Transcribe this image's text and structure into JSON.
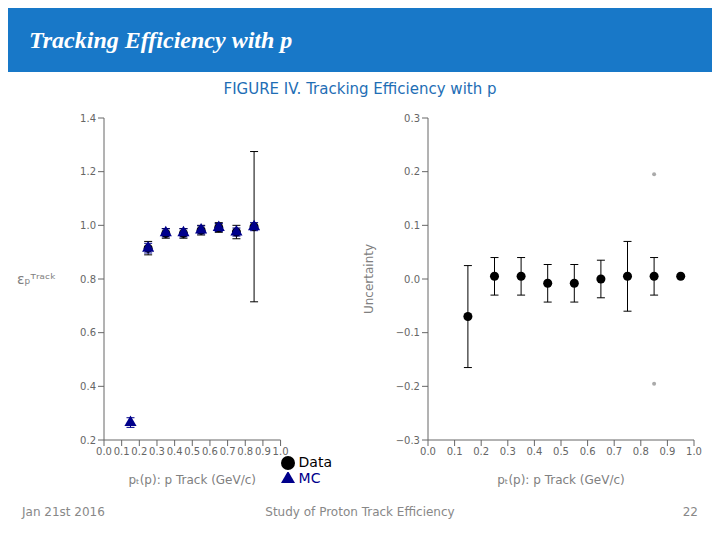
{
  "chart_data": [
    {
      "type": "scatter",
      "title": "Tracking Efficiency with p",
      "subtitle": "FIGURE IV. Tracking Efficiency with p",
      "annotations": [
        "Jan 21st 2016",
        "Study of Proton Track Efficiency",
        "22"
      ],
      "xlabel": "pₜ(p): p Track (GeV/c)",
      "ylabel": "εₚᵀʳᵃᶜᵏ",
      "xlim": [
        0,
        1
      ],
      "ylim": [
        0.2,
        1.4
      ],
      "xticks": [
        {
          "value": 0,
          "label": "0.0"
        },
        0.1,
        0.2,
        0.3,
        0.4,
        0.5,
        0.6,
        0.7,
        0.8,
        0.9,
        {
          "value": 1,
          "label": "1.0"
        }
      ],
      "yticks": [
        0.2,
        0.4,
        0.6,
        0.8,
        {
          "value": 1,
          "label": "1.0"
        },
        1.2,
        1.4
      ],
      "grid": false,
      "legend": "lower right",
      "series": [
        {
          "name": "Data",
          "color": "#000000",
          "marker": "circle",
          "x": [
            0.25,
            0.35,
            0.45,
            0.55,
            0.65,
            0.75,
            0.85
          ],
          "values": [
            0.915,
            0.97,
            0.97,
            0.982,
            0.992,
            0.975,
            0.995
          ],
          "yerr": [
            0.025,
            0.018,
            0.018,
            0.018,
            0.018,
            0.025,
            0.28
          ]
        },
        {
          "name": "MC",
          "color": "#00008B",
          "marker": "triangle",
          "x": [
            0.15,
            0.25,
            0.35,
            0.45,
            0.55,
            0.65,
            0.75,
            0.85
          ],
          "values": [
            0.265,
            0.915,
            0.972,
            0.972,
            0.983,
            0.992,
            0.975,
            0.995
          ],
          "yerr": [
            0.018,
            0.018,
            0.015,
            0.015,
            0.015,
            0.015,
            0.015,
            0.015
          ]
        }
      ]
    },
    {
      "type": "scatter",
      "xlabel": "pₜ(p): p Track (GeV/c)",
      "ylabel": "Uncertainty",
      "xlim": [
        0,
        1
      ],
      "ylim": [
        -0.3,
        0.3
      ],
      "xticks": [
        {
          "value": 0,
          "label": "0.0"
        },
        0.1,
        0.2,
        0.3,
        0.4,
        0.5,
        0.6,
        0.7,
        0.8,
        0.9,
        {
          "value": 1,
          "label": "1.0"
        }
      ],
      "yticks": [
        {
          "value": -0.3,
          "label": "−0.3"
        },
        {
          "value": -0.2,
          "label": "−0.2"
        },
        {
          "value": -0.1,
          "label": "−0.1"
        },
        {
          "value": 0,
          "label": "0.0"
        },
        0.1,
        0.2,
        0.3
      ],
      "grid": false,
      "series": [
        {
          "color": "#000000",
          "marker": "circle",
          "x": [
            0.15,
            0.25,
            0.35,
            0.45,
            0.55,
            0.65,
            0.75,
            0.85,
            0.95
          ],
          "values": [
            -0.07,
            0.005,
            0.005,
            -0.008,
            -0.008,
            0.0,
            0.005,
            0.005,
            0.005
          ],
          "yerr": [
            0.095,
            0.035,
            0.035,
            0.035,
            0.035,
            0.035,
            0.065,
            0.035,
            null
          ]
        },
        {
          "color": "#aaaaaa",
          "marker": "dot",
          "x": [
            0.85,
            0.85
          ],
          "values": [
            0.195,
            -0.195
          ]
        }
      ]
    }
  ]
}
